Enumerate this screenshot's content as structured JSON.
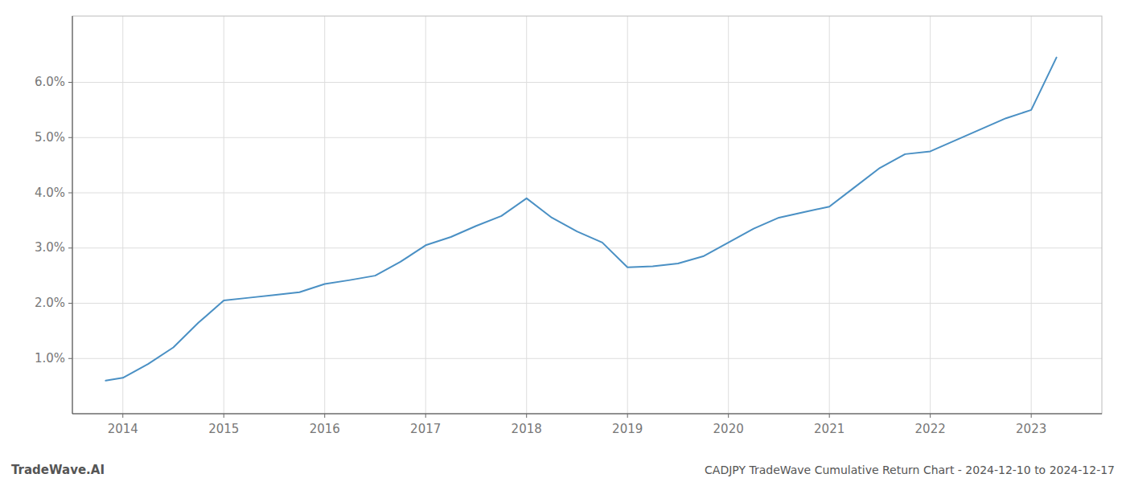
{
  "chart_data": {
    "type": "line",
    "title": "CADJPY TradeWave Cumulative Return Chart - 2024-12-10 to 2024-12-17",
    "annotations": [
      "TradeWave.AI"
    ],
    "x": [
      2013.83,
      2014.0,
      2014.25,
      2014.5,
      2014.75,
      2015.0,
      2015.25,
      2015.5,
      2015.75,
      2016.0,
      2016.25,
      2016.5,
      2016.75,
      2017.0,
      2017.25,
      2017.5,
      2017.75,
      2018.0,
      2018.25,
      2018.5,
      2018.75,
      2019.0,
      2019.25,
      2019.5,
      2019.75,
      2020.0,
      2020.25,
      2020.5,
      2020.75,
      2021.0,
      2021.25,
      2021.5,
      2021.75,
      2022.0,
      2022.25,
      2022.5,
      2022.75,
      2023.0,
      2023.25
    ],
    "values": [
      0.6,
      0.65,
      0.9,
      1.2,
      1.65,
      2.05,
      2.1,
      2.15,
      2.2,
      2.35,
      2.42,
      2.5,
      2.75,
      3.05,
      3.2,
      3.4,
      3.58,
      3.9,
      3.55,
      3.3,
      3.1,
      2.65,
      2.67,
      2.72,
      2.85,
      3.1,
      3.35,
      3.55,
      3.65,
      3.75,
      4.1,
      4.45,
      4.7,
      4.75,
      4.95,
      5.15,
      5.35,
      5.5,
      6.45
    ],
    "color": "#4a90c4",
    "xlim": [
      2013.5,
      2023.7
    ],
    "ylim": [
      0.0,
      7.2
    ],
    "xticks": [
      2014,
      2015,
      2016,
      2017,
      2018,
      2019,
      2020,
      2021,
      2022,
      2023
    ],
    "yticks": [
      {
        "value": 1.0,
        "label": "1.0%"
      },
      {
        "value": 2.0,
        "label": "2.0%"
      },
      {
        "value": 3.0,
        "label": "3.0%"
      },
      {
        "value": 4.0,
        "label": "4.0%"
      },
      {
        "value": 5.0,
        "label": "5.0%"
      },
      {
        "value": 6.0,
        "label": "6.0%"
      }
    ],
    "grid": true
  }
}
